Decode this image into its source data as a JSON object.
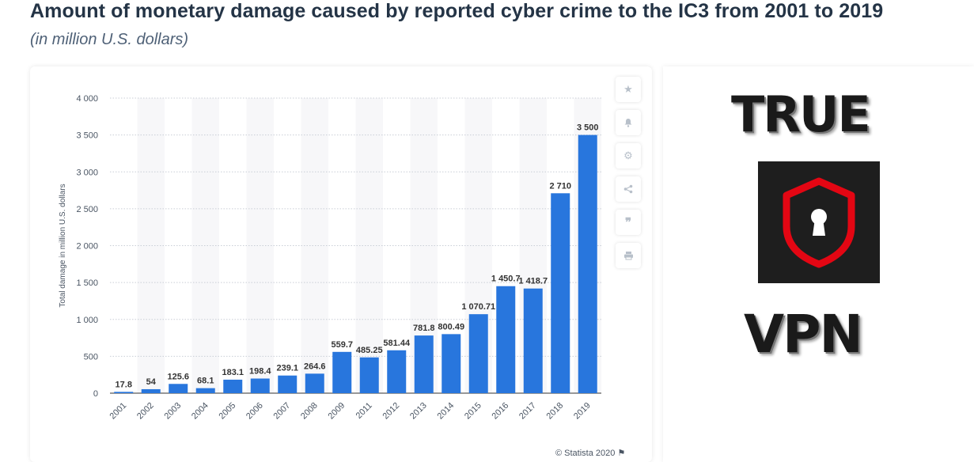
{
  "header": {
    "title": "Amount of monetary damage caused by reported cyber crime to the IC3 from 2001 to 2019",
    "subtitle": "(in million U.S. dollars)"
  },
  "toolbar": {
    "icons": [
      "star-icon",
      "bell-icon",
      "gear-icon",
      "share-icon",
      "quote-icon",
      "print-icon"
    ]
  },
  "credit": "© Statista 2020",
  "ad": {
    "word_top": "TRUE",
    "word_bottom": "VPN",
    "accent_color": "#e30613"
  },
  "chart_data": {
    "type": "bar",
    "categories": [
      "2001",
      "2002",
      "2003",
      "2004",
      "2005",
      "2006",
      "2007",
      "2008",
      "2009",
      "2011",
      "2012",
      "2013",
      "2014",
      "2015",
      "2016",
      "2017",
      "2018",
      "2019"
    ],
    "values": [
      17.8,
      54,
      125.6,
      68.1,
      183.1,
      198.4,
      239.1,
      264.6,
      559.7,
      485.25,
      581.44,
      781.8,
      800.49,
      1070.71,
      1450.7,
      1418.7,
      2710,
      3500
    ],
    "value_labels": [
      "17.8",
      "54",
      "125.6",
      "68.1",
      "183.1",
      "198.4",
      "239.1",
      "264.6",
      "559.7",
      "485.25",
      "581.44",
      "781.8",
      "800.49",
      "1 070.71",
      "1 450.7",
      "1 418.7",
      "2 710",
      "3 500"
    ],
    "ylabel": "Total damage in million U.S. dollars",
    "ylim": [
      0,
      4000
    ],
    "yticks": [
      0,
      500,
      1000,
      1500,
      2000,
      2500,
      3000,
      3500,
      4000
    ],
    "ytick_labels": [
      "0",
      "500",
      "1 000",
      "1 500",
      "2 000",
      "2 500",
      "3 000",
      "3 500",
      "4 000"
    ],
    "grid": true,
    "bar_color": "#2876dd"
  }
}
